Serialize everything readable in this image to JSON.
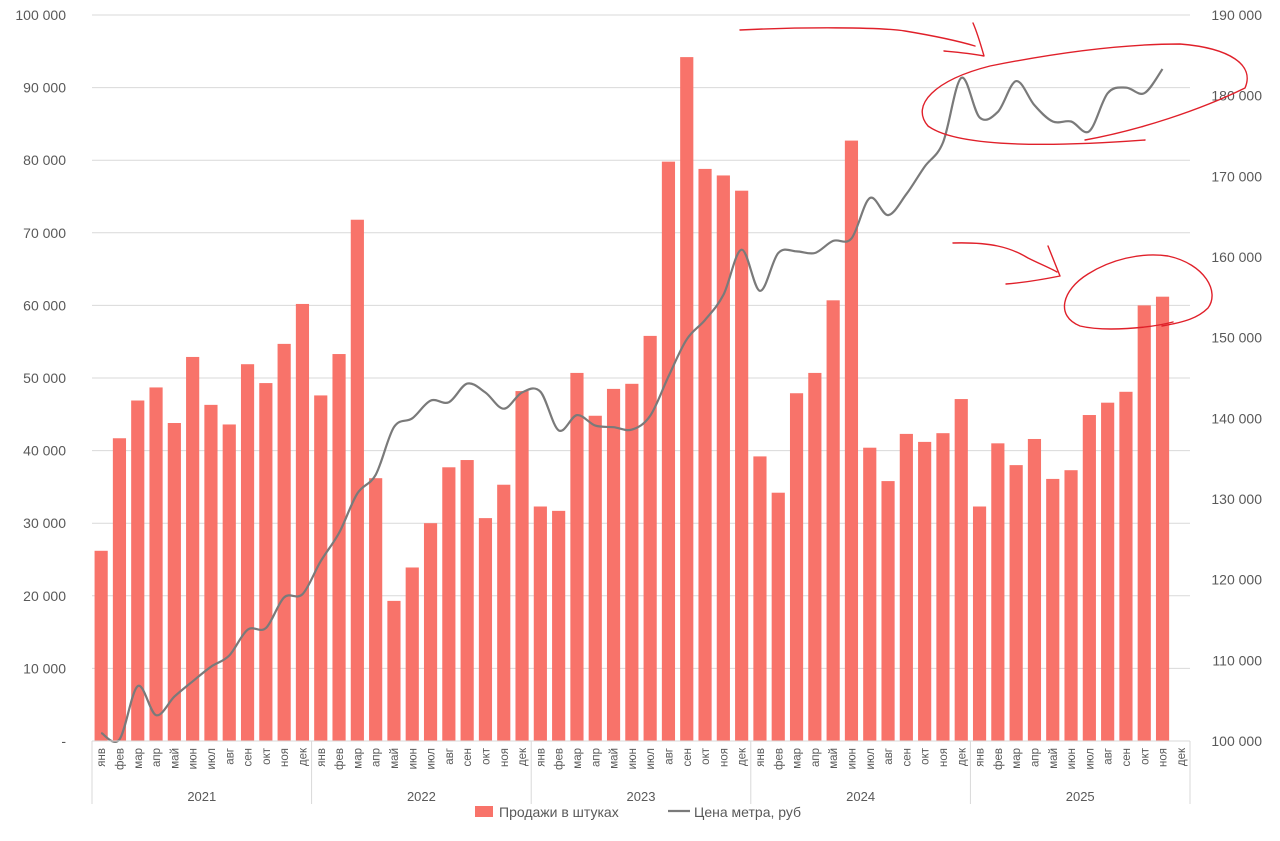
{
  "chart_data": {
    "type": "bar",
    "colors": {
      "bars": "#f8736a",
      "line": "#7a7a7a",
      "annotation": "#e0202a",
      "grid": "#d9d9d9",
      "text": "#595959"
    },
    "months": [
      "янв",
      "фев",
      "мар",
      "апр",
      "май",
      "июн",
      "июл",
      "авг",
      "сен",
      "окт",
      "ноя",
      "дек"
    ],
    "years": [
      "2021",
      "2022",
      "2023",
      "2024",
      "2025"
    ],
    "left_axis": {
      "ylim": [
        0,
        100000
      ],
      "ticks": [
        "-",
        "10 000",
        "20 000",
        "30 000",
        "40 000",
        "50 000",
        "60 000",
        "70 000",
        "80 000",
        "90 000",
        "100 000"
      ]
    },
    "right_axis": {
      "ylim": [
        100000,
        190000
      ],
      "ticks": [
        "100 000",
        "110 000",
        "120 000",
        "130 000",
        "140 000",
        "150 000",
        "160 000",
        "170 000",
        "180 000",
        "190 000"
      ]
    },
    "grid": true,
    "legend_position": "bottom",
    "series": [
      {
        "name": "Продажи в штуках",
        "type": "bar",
        "axis": "left",
        "values": [
          26200,
          41700,
          46900,
          48700,
          43800,
          52900,
          46300,
          43600,
          51900,
          49300,
          54700,
          60200,
          47600,
          53300,
          71800,
          36200,
          19300,
          23900,
          30000,
          37700,
          38700,
          30700,
          35300,
          48200,
          32300,
          31700,
          50700,
          44800,
          48500,
          49200,
          55800,
          79800,
          94200,
          78800,
          77900,
          75800,
          39200,
          34200,
          47900,
          50700,
          60700,
          82700,
          40400,
          35800,
          42300,
          41200,
          42400,
          47100,
          32300,
          41000,
          38000,
          41600,
          36100,
          37300,
          44900,
          46600,
          48100,
          60000,
          61200,
          null
        ]
      },
      {
        "name": "Цена метра, руб",
        "type": "line",
        "axis": "right",
        "values": [
          101000,
          100200,
          106800,
          103200,
          105500,
          107400,
          109200,
          110600,
          113800,
          114000,
          117800,
          118200,
          122300,
          125800,
          130700,
          133000,
          138900,
          140000,
          142200,
          142000,
          144300,
          143200,
          141200,
          143200,
          143300,
          138500,
          140400,
          139100,
          138900,
          138600,
          140300,
          145200,
          149800,
          152200,
          155300,
          160900,
          155800,
          160500,
          160700,
          160500,
          162000,
          162300,
          167300,
          165200,
          167800,
          171200,
          174200,
          182200,
          177300,
          178000,
          181800,
          178800,
          176800,
          176800,
          175600,
          180300,
          181000,
          180300,
          183300,
          null
        ]
      }
    ]
  }
}
